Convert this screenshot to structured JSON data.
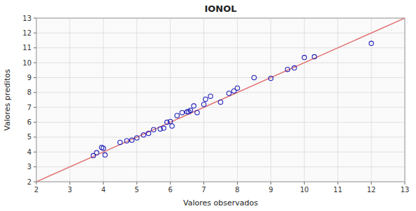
{
  "chart_data": {
    "type": "scatter",
    "title": "IONOL",
    "x_label": "Valores observados",
    "y_label": "Valores preditos",
    "xlim": [
      2,
      13
    ],
    "ylim": [
      2,
      13
    ],
    "xticks": [
      2,
      3,
      4,
      5,
      6,
      7,
      8,
      9,
      10,
      11,
      12,
      13
    ],
    "yticks": [
      2,
      3,
      4,
      5,
      6,
      7,
      8,
      9,
      10,
      11,
      12,
      13
    ],
    "grid": true,
    "series": [
      {
        "type": "line",
        "color": "#e07070",
        "x": [
          2.0,
          13.0
        ],
        "values": [
          2.0,
          13.0
        ]
      },
      {
        "type": "scatter",
        "color": "#2222bb",
        "marker": "open-circle",
        "x": [
          3.7,
          3.8,
          3.95,
          4.0,
          4.05,
          4.5,
          4.7,
          4.85,
          5.0,
          5.2,
          5.35,
          5.5,
          5.7,
          5.8,
          5.9,
          6.0,
          6.05,
          6.2,
          6.35,
          6.5,
          6.55,
          6.6,
          6.7,
          6.8,
          7.0,
          7.05,
          7.2,
          7.5,
          7.75,
          7.9,
          8.0,
          8.5,
          9.0,
          9.5,
          9.7,
          10.0,
          10.3,
          12.0
        ],
        "values": [
          3.75,
          3.95,
          4.3,
          4.25,
          3.8,
          4.65,
          4.75,
          4.8,
          4.95,
          5.15,
          5.25,
          5.5,
          5.55,
          5.6,
          6.0,
          6.05,
          5.75,
          6.45,
          6.65,
          6.7,
          6.7,
          6.8,
          7.1,
          6.65,
          7.2,
          7.55,
          7.75,
          7.35,
          7.95,
          8.1,
          8.3,
          9.0,
          8.95,
          9.55,
          9.65,
          10.35,
          10.4,
          11.3
        ]
      }
    ]
  }
}
